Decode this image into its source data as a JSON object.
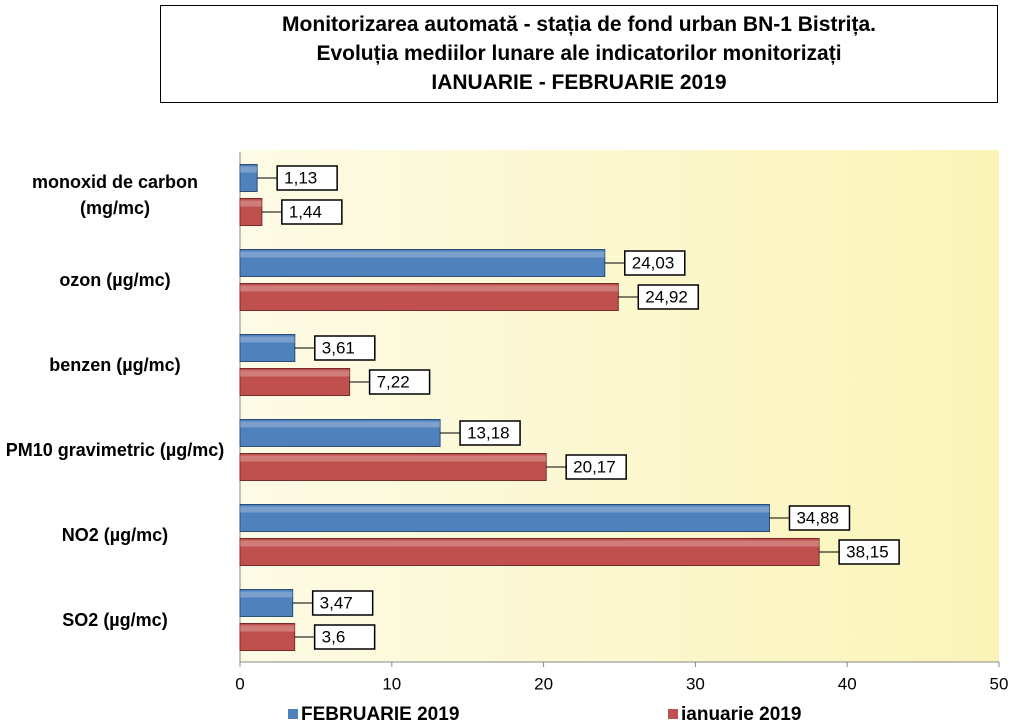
{
  "chart_data": {
    "type": "barh",
    "title": "Monitorizarea automată - stația de fond urban BN-1 Bistrița.\nEvoluția mediilor lunare ale indicatorilor monitorizați\nIANUARIE  - FEBRUARIE 2019",
    "categories": [
      "monoxid de carbon (mg/mc)",
      "ozon (µg/mc)",
      "benzen (µg/mc)",
      "PM10 gravimetric (µg/mc)",
      "NO2 (µg/mc)",
      "SO2 (µg/mc)"
    ],
    "series": [
      {
        "name": "FEBRUARIE 2019",
        "color": "#4f81bd",
        "values": [
          1.13,
          24.03,
          3.61,
          13.18,
          34.88,
          3.47
        ],
        "value_labels": [
          "1,13",
          "24,03",
          "3,61",
          "13,18",
          "34,88",
          "3,47"
        ]
      },
      {
        "name": "ianuarie 2019",
        "color": "#c0504d",
        "values": [
          1.44,
          24.92,
          7.22,
          20.17,
          38.15,
          3.6
        ],
        "value_labels": [
          "1,44",
          "24,92",
          "7,22",
          "20,17",
          "38,15",
          "3,6"
        ]
      }
    ],
    "xlim": [
      0,
      50
    ],
    "xticks": [
      0,
      10,
      20,
      30,
      40,
      50
    ]
  }
}
